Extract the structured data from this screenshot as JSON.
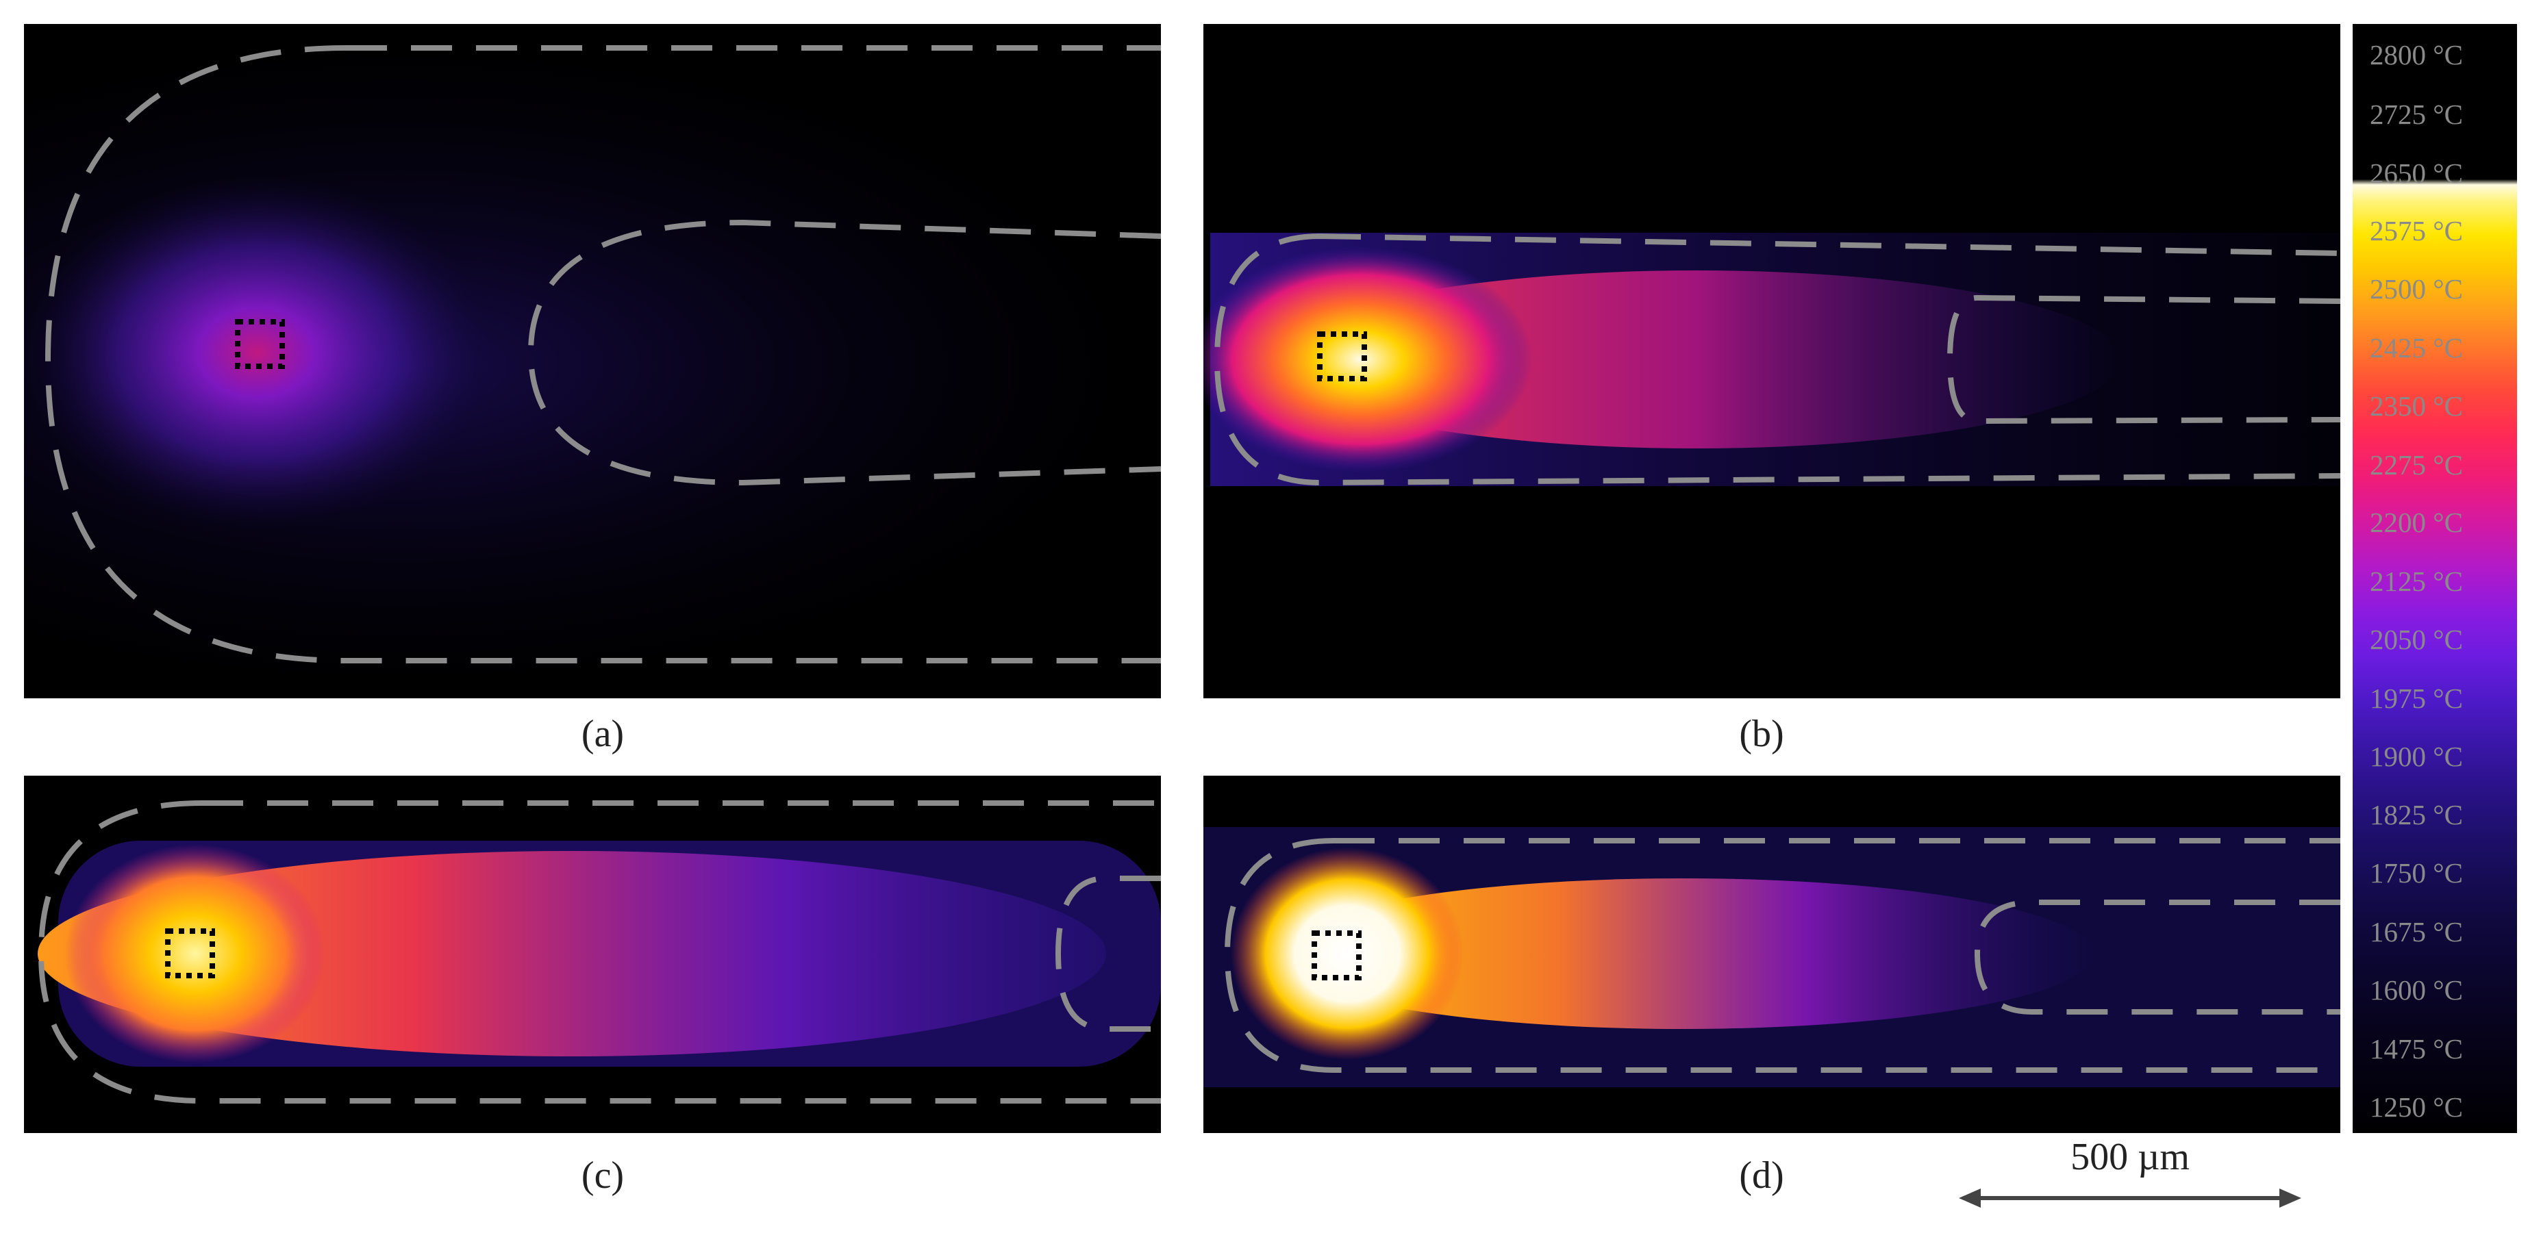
{
  "panels": [
    {
      "label": "(a)"
    },
    {
      "label": "(b)"
    },
    {
      "label": "(c)"
    },
    {
      "label": "(d)"
    }
  ],
  "colorbar": {
    "ticks": [
      "2800 °C",
      "2725 °C",
      "2650 °C",
      "2575 °C",
      "2500 °C",
      "2425 °C",
      "2350 °C",
      "2275 °C",
      "2200 °C",
      "2125 °C",
      "2050 °C",
      "1975 °C",
      "1900 °C",
      "1825 °C",
      "1750 °C",
      "1675 °C",
      "1600 °C",
      "1475 °C",
      "1250 °C"
    ]
  },
  "scale_bar": {
    "label": "500 µm"
  },
  "colors": {
    "outline_dash": "#8c8c8c",
    "background": "#000000",
    "caption_text": "#222222",
    "tick_text": "#8a8a8a"
  }
}
